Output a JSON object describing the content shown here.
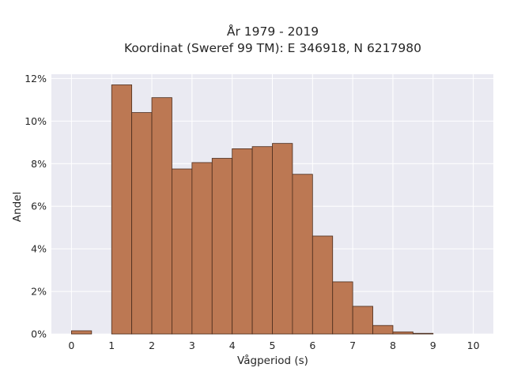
{
  "chart_data": {
    "type": "bar",
    "title": "År 1979 - 2019",
    "subtitle": "Koordinat (Sweref 99 TM): E 346918, N 6217980",
    "xlabel": "Vågperiod (s)",
    "ylabel": "Andel",
    "xlim": [
      -0.5,
      10.5
    ],
    "ylim": [
      0,
      12.2
    ],
    "xticks": [
      "0",
      "1",
      "2",
      "3",
      "4",
      "5",
      "6",
      "7",
      "8",
      "9",
      "10"
    ],
    "yticks": [
      "0%",
      "2%",
      "4%",
      "6%",
      "8%",
      "10%",
      "12%"
    ],
    "bin_width": 0.5,
    "bins": [
      {
        "x": 0.0,
        "value": 0.15
      },
      {
        "x": 0.5,
        "value": 0
      },
      {
        "x": 1.0,
        "value": 11.7
      },
      {
        "x": 1.5,
        "value": 10.4
      },
      {
        "x": 2.0,
        "value": 11.1
      },
      {
        "x": 2.5,
        "value": 7.75
      },
      {
        "x": 3.0,
        "value": 8.05
      },
      {
        "x": 3.5,
        "value": 8.25
      },
      {
        "x": 4.0,
        "value": 8.7
      },
      {
        "x": 4.5,
        "value": 8.8
      },
      {
        "x": 5.0,
        "value": 8.95
      },
      {
        "x": 5.5,
        "value": 7.5
      },
      {
        "x": 6.0,
        "value": 4.6
      },
      {
        "x": 6.5,
        "value": 2.45
      },
      {
        "x": 7.0,
        "value": 1.3
      },
      {
        "x": 7.5,
        "value": 0.4
      },
      {
        "x": 8.0,
        "value": 0.1
      },
      {
        "x": 8.5,
        "value": 0.03
      }
    ],
    "grid": true,
    "colors": {
      "bar": "#bc7853",
      "bar_edge": "#4a2c1c",
      "plot_bg": "#eaeaf2",
      "grid": "#ffffff",
      "text": "#262626"
    }
  }
}
